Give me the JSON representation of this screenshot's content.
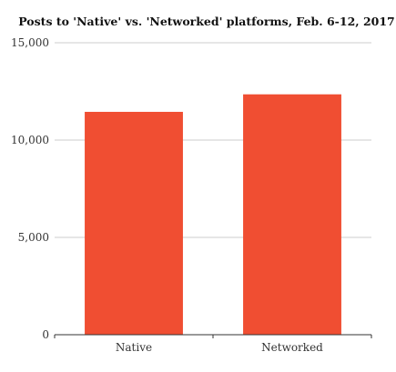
{
  "chart_data": {
    "type": "bar",
    "title": "Posts to 'Native' vs. 'Networked' platforms, Feb. 6-12, 2017",
    "categories": [
      "Native",
      "Networked"
    ],
    "values": [
      11450,
      12350
    ],
    "ylim": [
      0,
      15000
    ],
    "yticks": [
      0,
      5000,
      10000,
      15000
    ],
    "ytick_labels": [
      "0",
      "5,000",
      "10,000",
      "15,000"
    ],
    "grid": true,
    "bar_color": "#f04e32",
    "grid_color": "#cccccc",
    "axis_color": "#333333"
  }
}
